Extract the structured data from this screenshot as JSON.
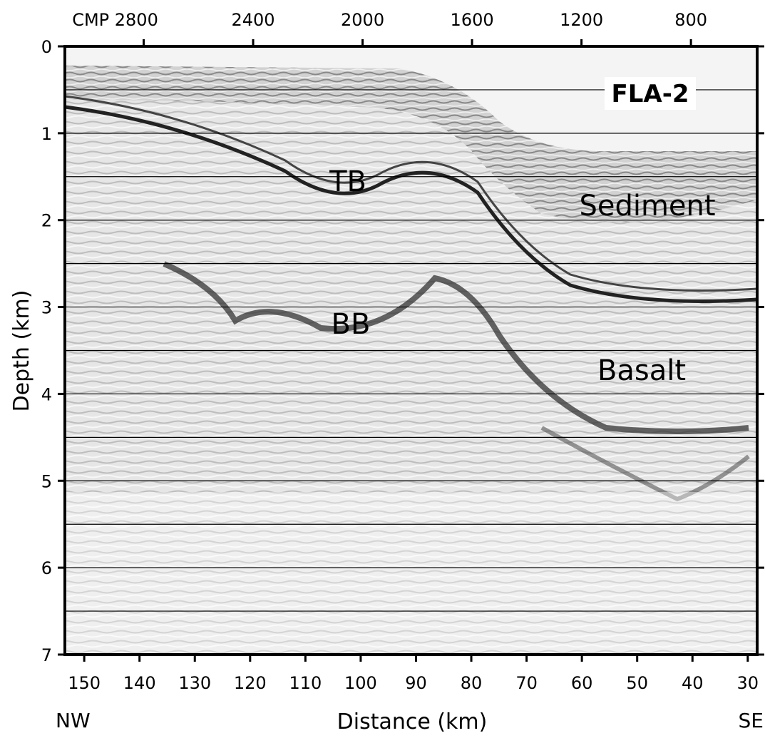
{
  "chart_data": {
    "type": "seismic-section",
    "xlabel": "Distance (km)",
    "ylabel": "Depth (km)",
    "xlim": [
      153.5,
      28.3
    ],
    "xticks": [
      150,
      140,
      130,
      120,
      110,
      100,
      90,
      80,
      70,
      60,
      50,
      40,
      30
    ],
    "x2lim": [
      3088,
      558
    ],
    "x2ticks": [
      {
        "value": 2800,
        "label": "CMP 2800"
      },
      2400,
      2000,
      1600,
      1200,
      800
    ],
    "ylim": [
      7,
      0
    ],
    "yticks": [
      0,
      1,
      2,
      3,
      4,
      5,
      6,
      7
    ],
    "ygrid": [
      0.5,
      1,
      1.5,
      2,
      2.5,
      3,
      3.5,
      4,
      4.5,
      5,
      5.5,
      6,
      6.5
    ],
    "annotations": [
      "FLA-2",
      "TB",
      "Sediment",
      "BB",
      "Basalt"
    ],
    "left_end": "NW",
    "right_end": "SE"
  }
}
